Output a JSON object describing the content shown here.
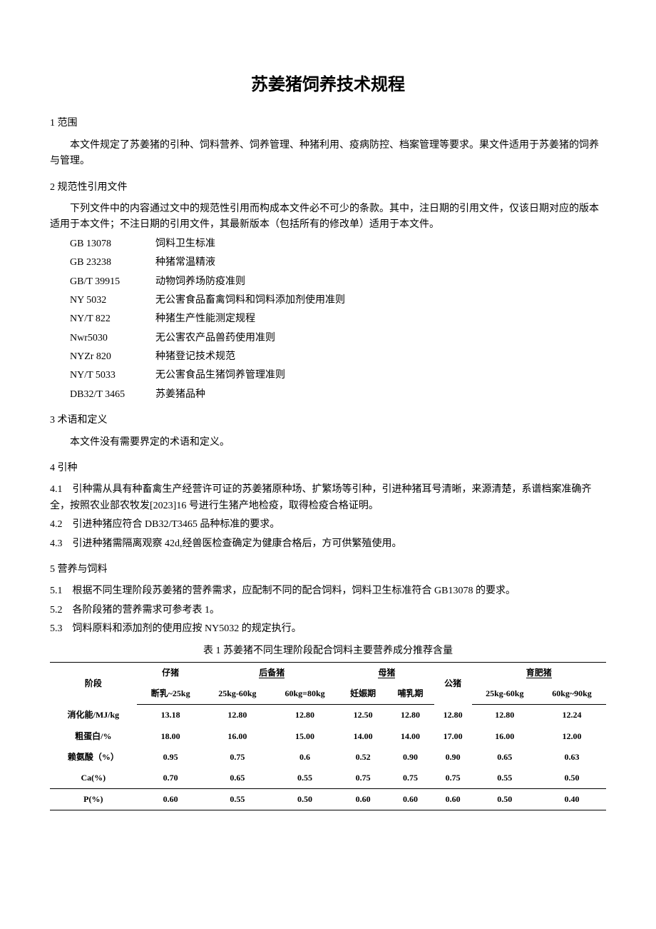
{
  "title": "苏姜猪饲养技术规程",
  "sections": {
    "s1": {
      "heading": "1 范围",
      "p1": "本文件规定了苏姜猪的引种、饲料营养、饲养管理、种猪利用、疫病防控、档案管理等要求。果文件适用于苏姜猪的饲养与管理。"
    },
    "s2": {
      "heading": "2 规范性引用文件",
      "intro": "下列文件中的内容通过文中的规范性引用而构成本文件必不可少的条款。其中，注日期的引用文件，仅该日期对应的版本适用于本文件；不注日期的引用文件，其最新版本（包括所有的修改单）适用于本文件。",
      "refs": [
        {
          "code": "GB 13078",
          "desc": "饲料卫生标准"
        },
        {
          "code": "GB 23238",
          "desc": "种猪常温精液"
        },
        {
          "code": "GB/T 39915",
          "desc": "动物饲养场防疫准则"
        },
        {
          "code": "NY 5032",
          "desc": "无公害食品畜禽饲料和饲料添加剂使用准则"
        },
        {
          "code": "NY/T 822",
          "desc": "种猪生产性能测定规程"
        },
        {
          "code": "Nwr5030",
          "desc": "无公害农产品兽药使用准则"
        },
        {
          "code": "NYZr 820",
          "desc": "种猪登记技术规范"
        },
        {
          "code": "NY/T 5033",
          "desc": "无公害食品生猪饲养管理准则"
        },
        {
          "code": "DB32/T 3465",
          "desc": "苏姜猪品种"
        }
      ]
    },
    "s3": {
      "heading": "3 术语和定义",
      "p1": "本文件没有需要界定的术语和定义。"
    },
    "s4": {
      "heading": "4 引种",
      "items": [
        "4.1　引种需从具有种畜禽生产经营许可证的苏姜猪原种场、扩繁场等引种，引进种猪耳号清晰，来源清楚，系谱档案准确齐全，按照农业部农牧发[2023]16 号进行生猪产地检疫，取得检疫合格证明。",
        "4.2　引进种猪应符合 DB32/T3465 品种标准的要求。",
        "4.3　引进种猪需隔离观察 42d,经兽医检查确定为健康合格后，方可供繁殖使用。"
      ]
    },
    "s5": {
      "heading": "5 营养与饲料",
      "items": [
        "5.1　根据不同生理阶段苏姜猪的营养需求，应配制不同的配合饲料，饲料卫生标准符合 GB13078 的要求。",
        "5.2　各阶段猪的营养需求可参考表 1。",
        "5.3　饲料原料和添加剂的使用应按 NY5032 的规定执行。"
      ]
    }
  },
  "table": {
    "caption": "表 1 苏姜猪不同生理阶段配合饲料主要营养成分推荐含量",
    "headers": {
      "stage": "阶段",
      "piglet": "仔猪",
      "piglet_sub": "断乳~25kg",
      "reserve": "后备猪",
      "reserve_a": "25kg-60kg",
      "reserve_b": "60kg=80kg",
      "sow": "母猪",
      "sow_a": "妊娠期",
      "sow_b": "哺乳期",
      "boar": "公猪",
      "fatten": "育肥猪",
      "fatten_a": "25kg-60kg",
      "fatten_b": "60kg~90kg"
    },
    "rows": [
      {
        "label": "消化能/MJ/kg",
        "v": [
          "13.18",
          "12.80",
          "12.80",
          "12.50",
          "12.80",
          "12.80",
          "12.80",
          "12.24"
        ]
      },
      {
        "label": "粗蛋白/%",
        "v": [
          "18.00",
          "16.00",
          "15.00",
          "14.00",
          "14.00",
          "17.00",
          "16.00",
          "12.00"
        ]
      },
      {
        "label": "赖氨酸（%）",
        "v": [
          "0.95",
          "0.75",
          "0.6",
          "0.52",
          "0.90",
          "0.90",
          "0.65",
          "0.63"
        ]
      },
      {
        "label": "Ca(%)",
        "v": [
          "0.70",
          "0.65",
          "0.55",
          "0.75",
          "0.75",
          "0.75",
          "0.55",
          "0.50"
        ]
      },
      {
        "label": "P(%)",
        "v": [
          "0.60",
          "0.55",
          "0.50",
          "0.60",
          "0.60",
          "0.60",
          "0.50",
          "0.40"
        ]
      }
    ]
  }
}
